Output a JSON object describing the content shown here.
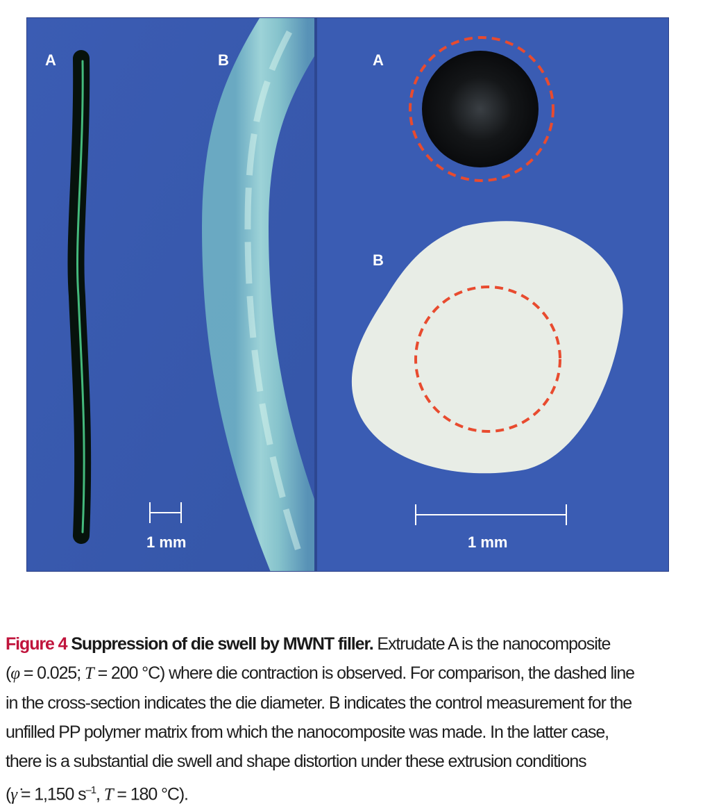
{
  "figure": {
    "left_panel": {
      "label_a": "A",
      "label_b": "B",
      "scale_text": "1 mm"
    },
    "right_panel": {
      "label_a": "A",
      "label_b": "B",
      "scale_text": "1 mm"
    }
  },
  "caption": {
    "figure_label": "Figure 4",
    "title": "Suppression of die swell by MWNT filler.",
    "line1_rest": "Extrudate A is the nanocomposite",
    "line2_phi": "φ",
    "line2_a": "(",
    "line2_b": " = 0.025; ",
    "line2_t": "T",
    "line2_c": " = 200 °C) where die contraction is observed. For comparison, the dashed line",
    "line3": "in the cross-section indicates the die diameter. B indicates the control measurement for the",
    "line4": "unfilled PP polymer matrix from which the nanocomposite was made. In the latter case,",
    "line5": "there is a substantial die swell and shape distortion under these extrusion conditions",
    "line6_a": "(",
    "line6_gamma": "γ̇",
    "line6_b": " = 1,150 s",
    "line6_sup": "–1",
    "line6_c": ", ",
    "line6_t": "T",
    "line6_d": " = 180 °C)."
  }
}
